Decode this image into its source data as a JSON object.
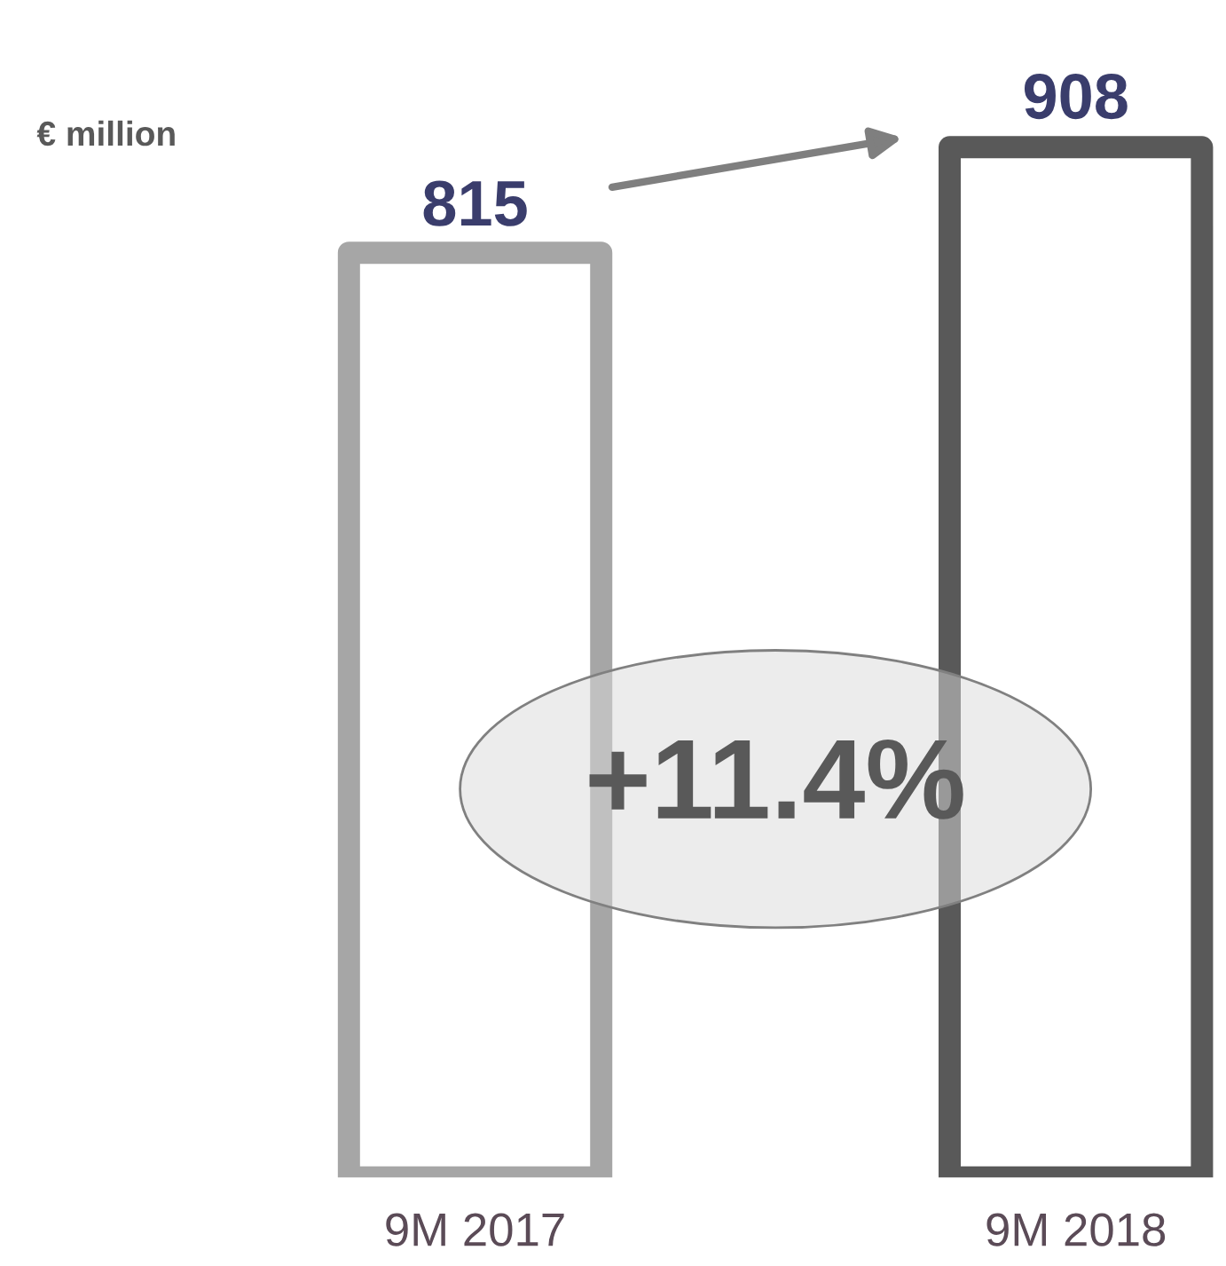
{
  "chart_data": {
    "type": "bar",
    "categories": [
      "9M 2017",
      "9M 2018"
    ],
    "values": [
      815,
      908
    ],
    "colors": [
      "#a6a6a6",
      "#595959"
    ],
    "data_labels": true,
    "annotations": [
      "€ million",
      "+11.4%"
    ]
  }
}
